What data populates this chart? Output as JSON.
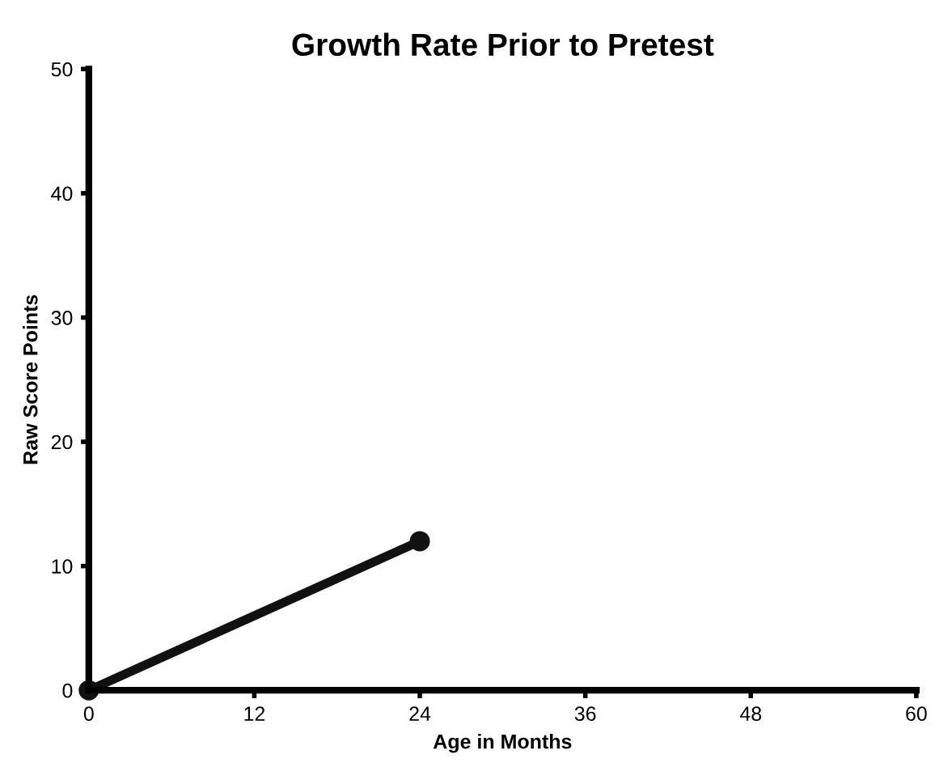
{
  "chart_data": {
    "type": "line",
    "title": "Growth Rate Prior to Pretest",
    "xlabel": "Age in Months",
    "ylabel": "Raw Score Points",
    "x": [
      0,
      24
    ],
    "series": [
      {
        "color": "#111111",
        "values": [
          0,
          12
        ]
      }
    ],
    "xlim": [
      0,
      60
    ],
    "xticks": [
      0,
      12,
      24,
      36,
      48,
      60
    ],
    "ylim": [
      0,
      50
    ],
    "yticks": [
      0,
      10,
      20,
      30,
      40,
      50
    ],
    "grid": false,
    "legend": false,
    "marker": "circle",
    "line_style": "solid"
  }
}
